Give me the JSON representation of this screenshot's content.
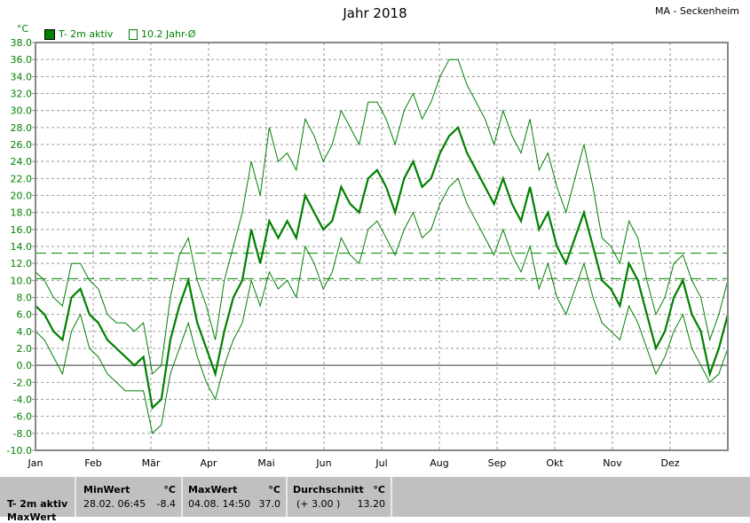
{
  "title": "Jahr 2018",
  "station": "MA - Seckenheim",
  "legend": [
    {
      "label": "T- 2m aktiv",
      "color": "#008000",
      "filled": true
    },
    {
      "label": "10.2 Jahr-Ø",
      "color": "#008000",
      "filled": false
    }
  ],
  "chart_data": {
    "type": "line",
    "title": "Jahr 2018",
    "ylabel": "°C",
    "ylim": [
      -10,
      38
    ],
    "yticks": [
      "38.0",
      "36.0",
      "34.0",
      "32.0",
      "30.0",
      "28.0",
      "26.0",
      "24.0",
      "22.0",
      "20.0",
      "18.0",
      "16.0",
      "14.0",
      "12.0",
      "10.0",
      "8.0",
      "6.0",
      "4.0",
      "2.0",
      "0.0",
      "-2.0",
      "-4.0",
      "-6.0",
      "-8.0",
      "-10.0"
    ],
    "xticks": [
      "Jan",
      "Feb",
      "Mär",
      "Apr",
      "Mai",
      "Jun",
      "Jul",
      "Aug",
      "Sep",
      "Okt",
      "Nov",
      "Dez"
    ],
    "grid": true,
    "reference_lines": [
      {
        "value": 13.2,
        "style": "dashed"
      },
      {
        "value": 10.2,
        "style": "dashed"
      }
    ],
    "series": [
      {
        "name": "T- 2m aktiv",
        "color": "#008000",
        "values": [
          7,
          6,
          4,
          3,
          8,
          9,
          6,
          5,
          3,
          2,
          1,
          0,
          1,
          -5,
          -4,
          3,
          7,
          10,
          5,
          2,
          -1,
          4,
          8,
          10,
          16,
          12,
          17,
          15,
          17,
          15,
          20,
          18,
          16,
          17,
          21,
          19,
          18,
          22,
          23,
          21,
          18,
          22,
          24,
          21,
          22,
          25,
          27,
          28,
          25,
          23,
          21,
          19,
          22,
          19,
          17,
          21,
          16,
          18,
          14,
          12,
          15,
          18,
          14,
          10,
          9,
          7,
          12,
          10,
          6,
          2,
          4,
          8,
          10,
          6,
          4,
          -1,
          2,
          6
        ]
      },
      {
        "color": "#008000",
        "values": [
          11,
          10,
          8,
          7,
          12,
          12,
          10,
          9,
          6,
          5,
          5,
          4,
          5,
          -1,
          0,
          8,
          13,
          15,
          10,
          7,
          3,
          10,
          14,
          18,
          24,
          20,
          28,
          24,
          25,
          23,
          29,
          27,
          24,
          26,
          30,
          28,
          26,
          31,
          31,
          29,
          26,
          30,
          32,
          29,
          31,
          34,
          36,
          36,
          33,
          31,
          29,
          26,
          30,
          27,
          25,
          29,
          23,
          25,
          21,
          18,
          22,
          26,
          21,
          15,
          14,
          12,
          17,
          15,
          10,
          6,
          8,
          12,
          13,
          10,
          8,
          3,
          6,
          10
        ]
      },
      {
        "color": "#008000",
        "values": [
          4,
          3,
          1,
          -1,
          4,
          6,
          2,
          1,
          -1,
          -2,
          -3,
          -3,
          -3,
          -8,
          -7,
          -1,
          2,
          5,
          1,
          -2,
          -4,
          0,
          3,
          5,
          10,
          7,
          11,
          9,
          10,
          8,
          14,
          12,
          9,
          11,
          15,
          13,
          12,
          16,
          17,
          15,
          13,
          16,
          18,
          15,
          16,
          19,
          21,
          22,
          19,
          17,
          15,
          13,
          16,
          13,
          11,
          14,
          9,
          12,
          8,
          6,
          9,
          12,
          8,
          5,
          4,
          3,
          7,
          5,
          2,
          -1,
          1,
          4,
          6,
          2,
          0,
          -2,
          -1,
          2
        ]
      }
    ]
  },
  "stats": {
    "row_label": "T- 2m aktiv",
    "row2_label": "MaxWert",
    "min": {
      "header": "MinWert",
      "unit": "°C",
      "date": "28.02.  06:45",
      "value": "-8.4"
    },
    "max": {
      "header": "MaxWert",
      "unit": "°C",
      "date": "04.08.  14:50",
      "value": "37.0"
    },
    "avg": {
      "header": "Durchschnitt",
      "unit": "°C",
      "delta": "(+ 3.00 )",
      "value": "13.20"
    }
  }
}
